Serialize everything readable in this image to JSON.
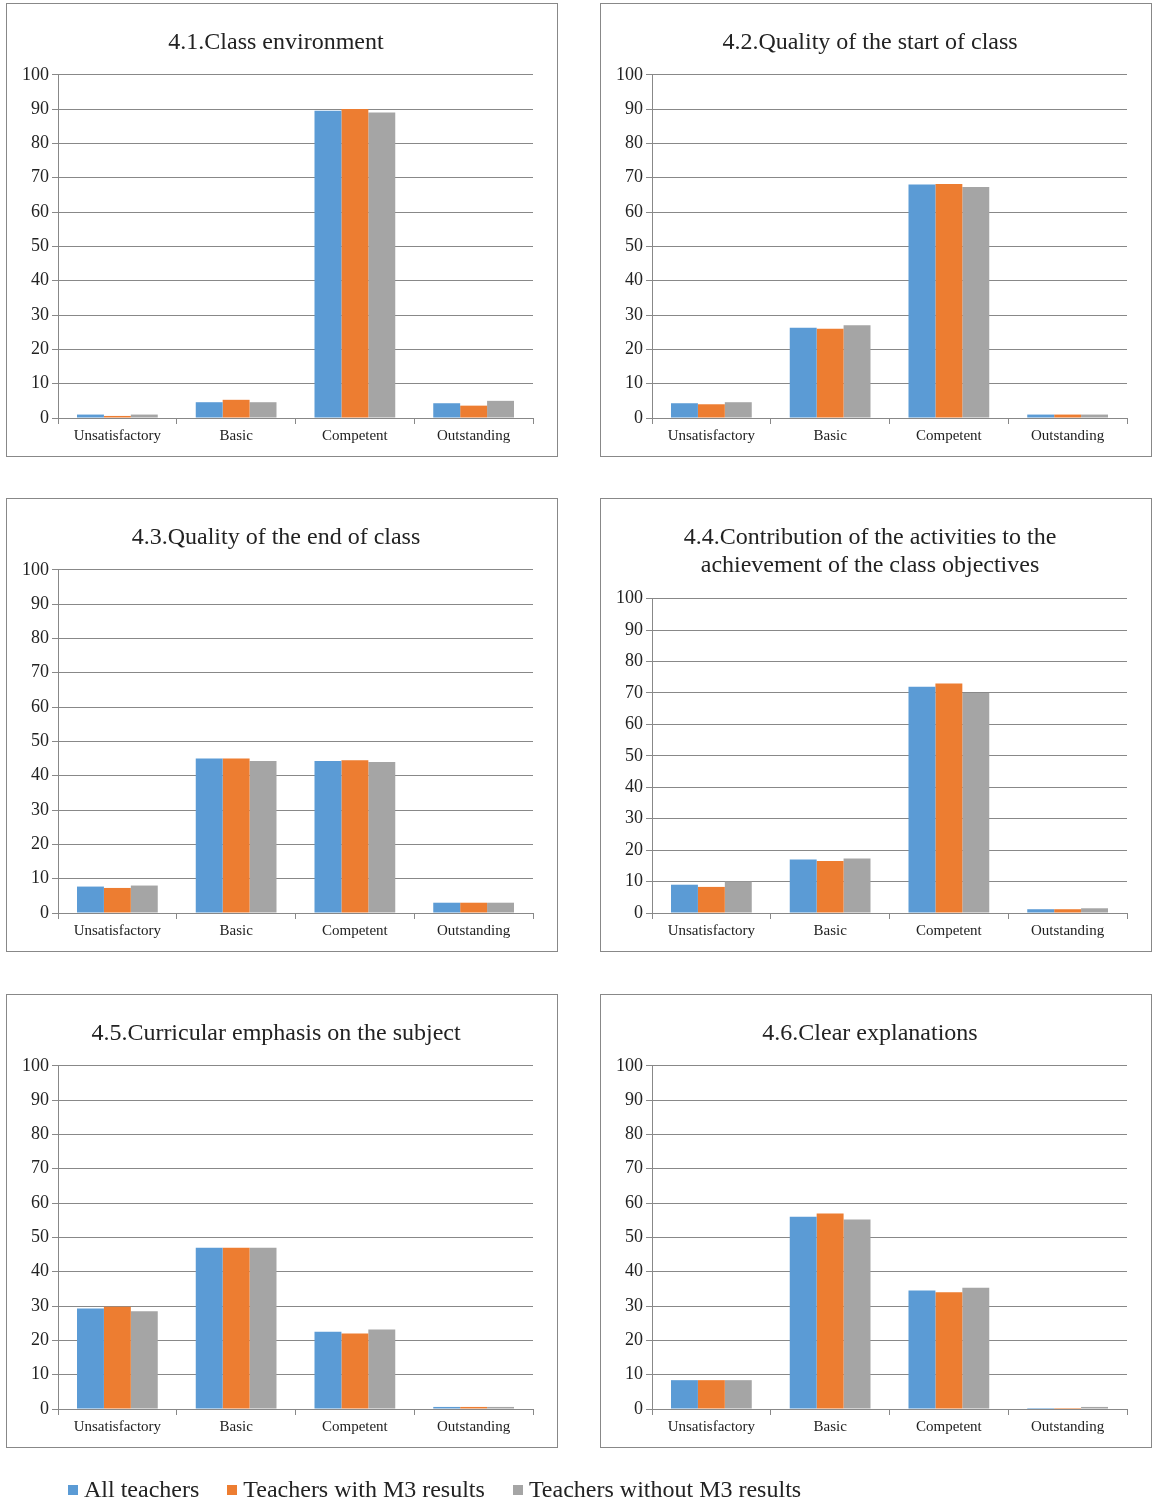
{
  "chart_data": [
    {
      "type": "bar",
      "title": "4.1.Class environment",
      "categories": [
        "Unsatisfactory",
        "Basic",
        "Competent",
        "Outstanding"
      ],
      "ylim": [
        0,
        100
      ],
      "yticks": [
        0,
        10,
        20,
        30,
        40,
        50,
        60,
        70,
        80,
        90,
        100
      ],
      "grid": "y",
      "legend": "bottom",
      "series": [
        {
          "name": "All teachers",
          "color": "#5b9bd5",
          "values": [
            1,
            4.6,
            89.5,
            4.3
          ]
        },
        {
          "name": "Teachers with M3 results",
          "color": "#ed7d31",
          "values": [
            0.6,
            5.3,
            90,
            3.6
          ]
        },
        {
          "name": "Teachers without M3 results",
          "color": "#a5a5a5",
          "values": [
            1,
            4.6,
            89,
            5
          ]
        }
      ]
    },
    {
      "type": "bar",
      "title": "4.2.Quality of the start of class",
      "categories": [
        "Unsatisfactory",
        "Basic",
        "Competent",
        "Outstanding"
      ],
      "ylim": [
        0,
        100
      ],
      "yticks": [
        0,
        10,
        20,
        30,
        40,
        50,
        60,
        70,
        80,
        90,
        100
      ],
      "grid": "y",
      "series": [
        {
          "color": "#5b9bd5",
          "values": [
            4.3,
            26.3,
            68,
            1
          ]
        },
        {
          "color": "#ed7d31",
          "values": [
            4,
            26,
            68.2,
            1
          ]
        },
        {
          "color": "#a5a5a5",
          "values": [
            4.6,
            27,
            67.3,
            1
          ]
        }
      ]
    },
    {
      "type": "bar",
      "title": "4.3.Quality of the end of class",
      "categories": [
        "Unsatisfactory",
        "Basic",
        "Competent",
        "Outstanding"
      ],
      "ylim": [
        0,
        100
      ],
      "yticks": [
        0,
        10,
        20,
        30,
        40,
        50,
        60,
        70,
        80,
        90,
        100
      ],
      "grid": "y",
      "series": [
        {
          "color": "#5b9bd5",
          "values": [
            7.7,
            45,
            44.3,
            3
          ]
        },
        {
          "color": "#ed7d31",
          "values": [
            7.3,
            45,
            44.5,
            3
          ]
        },
        {
          "color": "#a5a5a5",
          "values": [
            8,
            44.3,
            44,
            3
          ]
        }
      ]
    },
    {
      "type": "bar",
      "title": "4.4.Contribution of the activities to the achievement of the class objectives",
      "categories": [
        "Unsatisfactory",
        "Basic",
        "Competent",
        "Outstanding"
      ],
      "ylim": [
        0,
        100
      ],
      "yticks": [
        0,
        10,
        20,
        30,
        40,
        50,
        60,
        70,
        80,
        90,
        100
      ],
      "grid": "y",
      "series": [
        {
          "color": "#5b9bd5",
          "values": [
            9,
            17,
            72,
            1.2
          ]
        },
        {
          "color": "#ed7d31",
          "values": [
            8.3,
            16.5,
            73,
            1.2
          ]
        },
        {
          "color": "#a5a5a5",
          "values": [
            10,
            17.3,
            70,
            1.5
          ]
        }
      ]
    },
    {
      "type": "bar",
      "title": "4.5.Curricular emphasis on the subject",
      "categories": [
        "Unsatisfactory",
        "Basic",
        "Competent",
        "Outstanding"
      ],
      "ylim": [
        0,
        100
      ],
      "yticks": [
        0,
        10,
        20,
        30,
        40,
        50,
        60,
        70,
        80,
        90,
        100
      ],
      "grid": "y",
      "series": [
        {
          "color": "#5b9bd5",
          "values": [
            29.3,
            47,
            22.5,
            0.6
          ]
        },
        {
          "color": "#ed7d31",
          "values": [
            29.8,
            47,
            22,
            0.6
          ]
        },
        {
          "color": "#a5a5a5",
          "values": [
            28.5,
            47,
            23.2,
            0.6
          ]
        }
      ]
    },
    {
      "type": "bar",
      "title": "4.6.Clear explanations",
      "categories": [
        "Unsatisfactory",
        "Basic",
        "Competent",
        "Outstanding"
      ],
      "ylim": [
        0,
        100
      ],
      "yticks": [
        0,
        10,
        20,
        30,
        40,
        50,
        60,
        70,
        80,
        90,
        100
      ],
      "grid": "y",
      "series": [
        {
          "color": "#5b9bd5",
          "values": [
            8.4,
            56,
            34.5,
            0.3
          ]
        },
        {
          "color": "#ed7d31",
          "values": [
            8.4,
            57,
            34,
            0.3
          ]
        },
        {
          "color": "#a5a5a5",
          "values": [
            8.4,
            55.2,
            35.3,
            0.6
          ]
        }
      ]
    }
  ]
}
